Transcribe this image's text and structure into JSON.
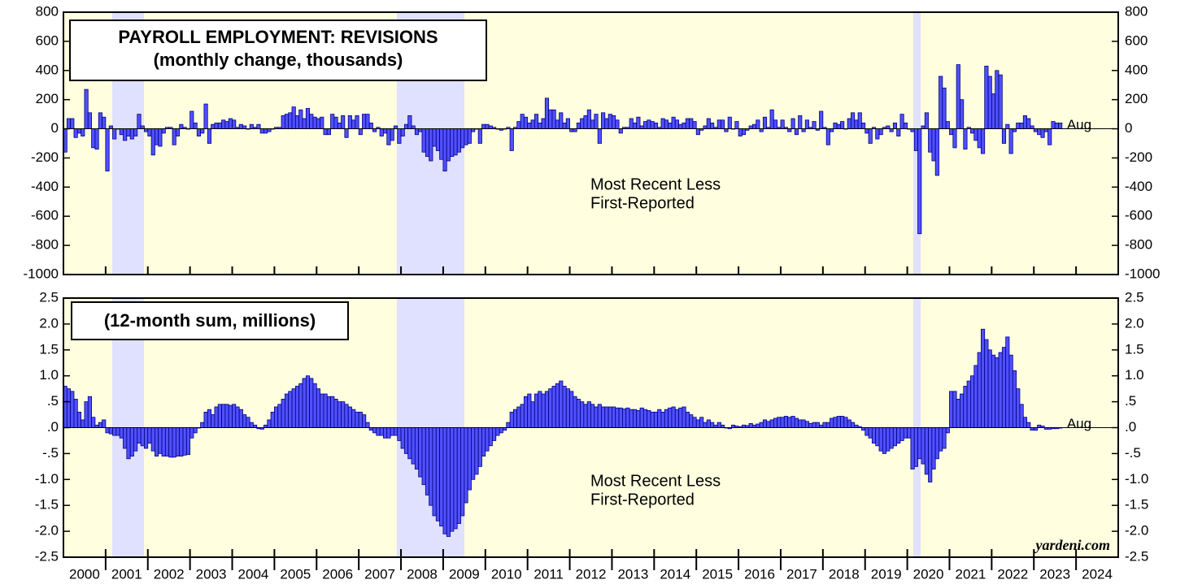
{
  "chart_data": [
    {
      "type": "bar",
      "title": [
        "PAYROLL EMPLOYMENT: REVISIONS",
        "(monthly change, thousands)"
      ],
      "annotation": [
        "Most Recent Less",
        "First-Reported"
      ],
      "end_label": "Aug",
      "color": "#5050ff",
      "ylim": [
        -1000,
        800
      ],
      "yticks": [
        800,
        600,
        400,
        200,
        0,
        -200,
        -400,
        -600,
        -800,
        -1000
      ],
      "values": [
        -160,
        70,
        70,
        -60,
        -30,
        -50,
        270,
        110,
        -130,
        -140,
        110,
        80,
        -290,
        20,
        -70,
        0,
        -40,
        -80,
        -50,
        -70,
        -50,
        100,
        20,
        -20,
        -50,
        -180,
        -110,
        -120,
        -30,
        10,
        10,
        -110,
        -50,
        30,
        10,
        0,
        120,
        40,
        -50,
        -30,
        170,
        -100,
        30,
        40,
        40,
        60,
        50,
        70,
        60,
        10,
        30,
        20,
        0,
        30,
        10,
        30,
        -30,
        -30,
        -20,
        0,
        10,
        10,
        90,
        100,
        110,
        150,
        90,
        130,
        70,
        140,
        100,
        80,
        70,
        80,
        -40,
        -40,
        100,
        80,
        40,
        90,
        -60,
        90,
        60,
        90,
        -40,
        100,
        100,
        40,
        -20,
        10,
        -50,
        -30,
        -110,
        -80,
        20,
        -100,
        -50,
        30,
        90,
        20,
        -40,
        -20,
        -160,
        -190,
        -220,
        -120,
        -150,
        -210,
        -290,
        -220,
        -190,
        -180,
        -160,
        -130,
        -110,
        -100,
        -20,
        0,
        -100,
        30,
        30,
        20,
        10,
        0,
        -10,
        0,
        10,
        -150,
        10,
        50,
        100,
        80,
        40,
        60,
        100,
        40,
        70,
        210,
        130,
        130,
        60,
        110,
        40,
        70,
        -20,
        -20,
        40,
        70,
        90,
        130,
        60,
        100,
        -100,
        110,
        70,
        100,
        90,
        60,
        -30,
        10,
        10,
        70,
        40,
        80,
        20,
        50,
        60,
        50,
        40,
        10,
        70,
        60,
        40,
        80,
        60,
        30,
        40,
        70,
        70,
        50,
        -40,
        -10,
        20,
        70,
        40,
        10,
        60,
        60,
        -20,
        80,
        0,
        50,
        -50,
        -40,
        -10,
        20,
        30,
        60,
        -20,
        80,
        10,
        130,
        60,
        10,
        60,
        10,
        -20,
        70,
        -40,
        90,
        -20,
        60,
        10,
        50,
        -10,
        120,
        10,
        -110,
        -20,
        40,
        30,
        50,
        0,
        70,
        110,
        60,
        110,
        40,
        -30,
        -100,
        10,
        -70,
        -40,
        10,
        20,
        -20,
        40,
        -50,
        100,
        40,
        0,
        -20,
        -150,
        -720,
        20,
        110,
        -160,
        -220,
        -320,
        360,
        280,
        50,
        -40,
        -130,
        440,
        200,
        -140,
        10,
        -30,
        -80,
        -130,
        -170,
        430,
        360,
        240,
        400,
        370,
        -100,
        30,
        -170,
        -20,
        40,
        40,
        90,
        70,
        20,
        -20,
        -40,
        -60,
        -20,
        -110,
        50,
        40,
        40
      ]
    },
    {
      "type": "bar",
      "title": "(12-month sum, millions)",
      "annotation": [
        "Most Recent Less",
        "First-Reported"
      ],
      "end_label": "Aug",
      "source": "yardeni.com",
      "color": "#5050ff",
      "ylim": [
        -2.5,
        2.5
      ],
      "yticks": [
        2.5,
        {
          "value": 2,
          "label": "2.0"
        },
        1.5,
        {
          "value": 1,
          "label": "1.0"
        },
        {
          "value": 0.5,
          "label": ".5"
        },
        {
          "value": 0,
          "label": ".0"
        },
        {
          "value": -0.5,
          "label": "-.5"
        },
        {
          "value": -1,
          "label": "-1.0"
        },
        -1.5,
        {
          "value": -2,
          "label": "-2.0"
        },
        -2.5
      ],
      "x_labels": [
        2000,
        2001,
        2002,
        2003,
        2004,
        2005,
        2006,
        2007,
        2008,
        2009,
        2010,
        2011,
        2012,
        2013,
        2014,
        2015,
        2016,
        2017,
        2018,
        2019,
        2020,
        2021,
        2022,
        2023,
        2024
      ],
      "values": [
        0.8,
        0.75,
        0.7,
        0.55,
        0.3,
        0.15,
        0.5,
        0.6,
        0.2,
        0.05,
        0.1,
        0.15,
        -0.1,
        -0.12,
        -0.15,
        -0.15,
        -0.2,
        -0.4,
        -0.6,
        -0.55,
        -0.45,
        -0.3,
        -0.35,
        -0.4,
        -0.3,
        -0.45,
        -0.55,
        -0.5,
        -0.55,
        -0.55,
        -0.57,
        -0.57,
        -0.55,
        -0.55,
        -0.53,
        -0.52,
        -0.2,
        -0.1,
        0.0,
        0.1,
        0.3,
        0.35,
        0.25,
        0.4,
        0.45,
        0.45,
        0.45,
        0.43,
        0.45,
        0.4,
        0.35,
        0.25,
        0.2,
        0.1,
        0.05,
        -0.02,
        -0.03,
        0.05,
        0.15,
        0.3,
        0.4,
        0.45,
        0.55,
        0.65,
        0.7,
        0.75,
        0.8,
        0.85,
        0.95,
        1.0,
        0.95,
        0.85,
        0.75,
        0.65,
        0.65,
        0.6,
        0.6,
        0.55,
        0.5,
        0.5,
        0.45,
        0.4,
        0.35,
        0.3,
        0.3,
        0.25,
        0.1,
        -0.05,
        -0.1,
        -0.15,
        -0.15,
        -0.2,
        -0.2,
        -0.15,
        -0.15,
        -0.25,
        -0.4,
        -0.5,
        -0.6,
        -0.7,
        -0.8,
        -0.95,
        -1.1,
        -1.3,
        -1.5,
        -1.7,
        -1.8,
        -1.9,
        -2.05,
        -2.1,
        -2.0,
        -1.95,
        -1.85,
        -1.7,
        -1.45,
        -1.2,
        -1.0,
        -0.9,
        -0.75,
        -0.55,
        -0.45,
        -0.35,
        -0.25,
        -0.15,
        -0.1,
        -0.05,
        0.1,
        0.3,
        0.35,
        0.4,
        0.45,
        0.6,
        0.65,
        0.5,
        0.65,
        0.7,
        0.65,
        0.7,
        0.75,
        0.8,
        0.85,
        0.9,
        0.8,
        0.75,
        0.7,
        0.6,
        0.55,
        0.5,
        0.45,
        0.5,
        0.45,
        0.4,
        0.45,
        0.4,
        0.4,
        0.4,
        0.4,
        0.38,
        0.38,
        0.36,
        0.38,
        0.35,
        0.35,
        0.33,
        0.38,
        0.35,
        0.33,
        0.3,
        0.3,
        0.35,
        0.3,
        0.35,
        0.38,
        0.4,
        0.35,
        0.38,
        0.4,
        0.3,
        0.25,
        0.2,
        0.15,
        0.2,
        0.1,
        0.15,
        0.1,
        0.05,
        0.1,
        0.05,
        0.0,
        -0.02,
        0.05,
        0.03,
        0.02,
        0.05,
        0.04,
        0.08,
        0.05,
        0.07,
        0.1,
        0.15,
        0.12,
        0.15,
        0.18,
        0.2,
        0.2,
        0.22,
        0.2,
        0.22,
        0.18,
        0.15,
        0.15,
        0.12,
        0.08,
        0.1,
        0.1,
        0.05,
        0.1,
        0.1,
        0.18,
        0.2,
        0.22,
        0.22,
        0.2,
        0.15,
        0.1,
        0.05,
        0.02,
        -0.05,
        -0.15,
        -0.2,
        -0.3,
        -0.35,
        -0.45,
        -0.5,
        -0.45,
        -0.4,
        -0.35,
        -0.3,
        -0.25,
        -0.2,
        -0.2,
        -0.8,
        -0.75,
        -0.6,
        -0.7,
        -0.9,
        -1.05,
        -0.8,
        -0.6,
        -0.45,
        -0.4,
        -0.1,
        0.7,
        0.7,
        0.55,
        0.65,
        0.8,
        0.9,
        1.0,
        1.2,
        1.45,
        1.9,
        1.7,
        1.5,
        1.4,
        1.35,
        1.45,
        1.55,
        1.75,
        1.4,
        1.1,
        0.75,
        0.45,
        0.2,
        0.1,
        -0.05,
        -0.05,
        0.05,
        0.03,
        -0.03,
        -0.03,
        -0.02,
        -0.02,
        -0.01
      ]
    }
  ]
}
